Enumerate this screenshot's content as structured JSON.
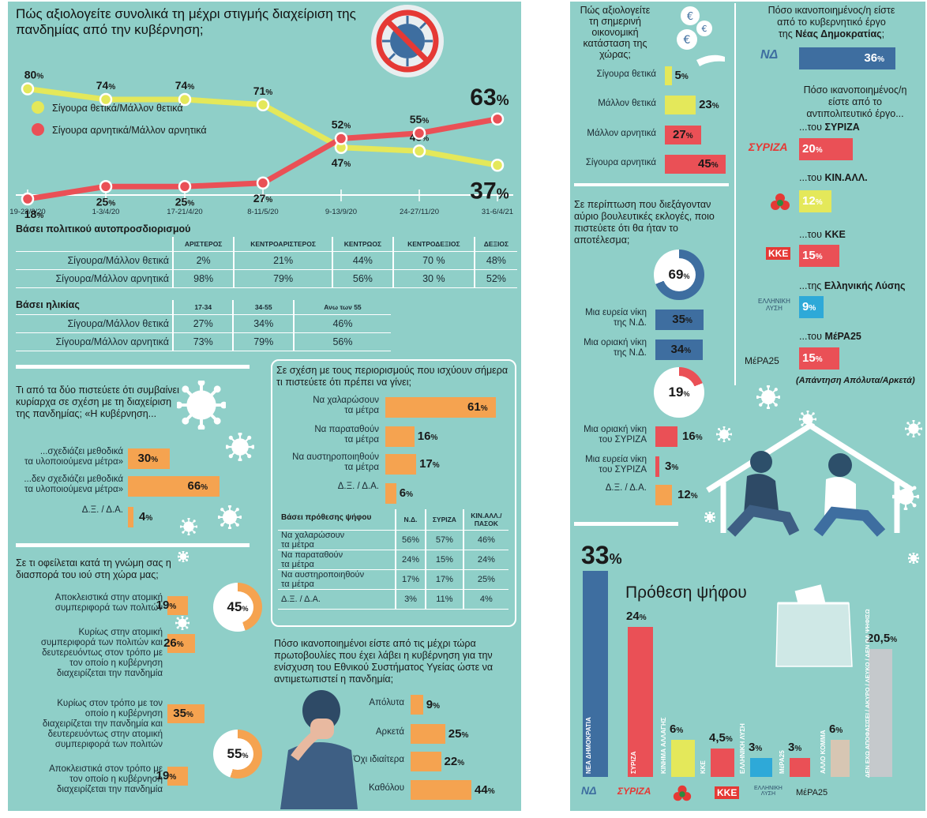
{
  "chart_data": [
    {
      "type": "line",
      "title": "Πώς αξιολογείτε συνολικά τη μέχρι στιγμής διαχείριση της πανδημίας από την κυβέρνηση;",
      "categories": [
        "19-22/3/20",
        "1-3/4/20",
        "17-21/4/20",
        "8-11/5/20",
        "9-13/9/20",
        "24-27/11/20",
        "31-6/4/21"
      ],
      "series": [
        {
          "name": "Σίγουρα θετικά/Μάλλον θετικά",
          "values": [
            80,
            74,
            74,
            71,
            47,
            45,
            37
          ],
          "color": "#e4e85a"
        },
        {
          "name": "Σίγουρα αρνητικά/Μάλλον αρνητικά",
          "values": [
            18,
            25,
            25,
            27,
            52,
            55,
            63
          ],
          "color": "#ea5056"
        }
      ],
      "ylim": [
        0,
        100
      ]
    },
    {
      "type": "table",
      "title": "Βάσει πολιτικού αυτοπροσδιορισμού",
      "columns": [
        "ΑΡΙΣΤΕΡΟΣ",
        "ΚΕΝΤΡΟΑΡΙΣΤΕΡΟΣ",
        "ΚΕΝΤΡΩΟΣ",
        "ΚΕΝΤΡΟΔΕΞΙΟΣ",
        "ΔΕΞΙΟΣ"
      ],
      "rows": [
        {
          "label": "Σίγουρα/Μάλλον θετικά",
          "values": [
            "2%",
            "21%",
            "44%",
            "70 %",
            "48%"
          ]
        },
        {
          "label": "Σίγουρα/Μάλλον αρνητικά",
          "values": [
            "98%",
            "79%",
            "56%",
            "30 %",
            "52%"
          ]
        }
      ]
    },
    {
      "type": "table",
      "title": "Βάσει ηλικίας",
      "columns": [
        "17-34",
        "34-55",
        "Ανω των 55"
      ],
      "rows": [
        {
          "label": "Σίγουρα/Μάλλον θετικά",
          "values": [
            "27%",
            "34%",
            "46%"
          ]
        },
        {
          "label": "Σίγουρα/Μάλλον αρνητικά",
          "values": [
            "73%",
            "79%",
            "56%"
          ]
        }
      ]
    },
    {
      "type": "bar",
      "title": "Τι από τα δύο πιστεύετε ότι συμβαίνει κυρίαρχα σε σχέση με τη διαχείριση της πανδημίας; «Η κυβέρνηση...",
      "categories": [
        "...σχεδιάζει μεθοδικά\nτα υλοποιούμενα μέτρα»",
        "...δεν σχεδιάζει μεθοδικά\nτα υλοποιούμενα μέτρα»",
        "Δ.Ξ. / Δ.Α."
      ],
      "values": [
        30,
        66,
        4
      ]
    },
    {
      "type": "bar",
      "title": "Σε τι οφείλεται κατά τη γνώμη σας η διασπορά του ιού στη χώρα μας;",
      "categories": [
        "Αποκλειστικά στην ατομική\nσυμπεριφορά των πολιτών",
        "Κυρίως στην ατομική\nσυμπεριφορά των πολιτών και\nδευτερευόντως στον τρόπο με\nτον οποίο η κυβέρνηση\nδιαχειρίζεται την πανδημία",
        "Κυρίως στον τρόπο με τον\nοποίο η κυβέρνηση\nδιαχειρίζεται την πανδημία και\nδευτερευόντως στην ατομική\nσυμπεριφορά των πολιτών",
        "Αποκλειστικά στον τρόπο με\nτον οποίο η κυβέρνηση\nδιαχειρίζεται την πανδημία"
      ],
      "values": [
        19,
        26,
        35,
        19
      ],
      "donuts": [
        45,
        55
      ]
    },
    {
      "type": "bar",
      "title": "Σε σχέση με τους περιορισμούς που ισχύουν σήμερα τι πιστεύετε ότι πρέπει να γίνει;",
      "categories": [
        "Να χαλαρώσουν\nτα μέτρα",
        "Να παραταθούν\nτα μέτρα",
        "Να αυστηροποιηθούν\nτα μέτρα",
        "Δ.Ξ. / Δ.Α."
      ],
      "values": [
        61,
        16,
        17,
        6
      ]
    },
    {
      "type": "table",
      "title": "Βάσει πρόθεσης ψήφου",
      "columns": [
        "Ν.Δ.",
        "ΣΥΡΙΖΑ",
        "ΚΙΝ.ΑΛΛ./\nΠΑΣΟΚ"
      ],
      "rows": [
        {
          "label": "Να χαλαρώσουν\nτα μέτρα",
          "values": [
            "56%",
            "57%",
            "46%"
          ]
        },
        {
          "label": "Να παραταθούν\nτα μέτρα",
          "values": [
            "24%",
            "15%",
            "24%"
          ]
        },
        {
          "label": "Να αυστηροποιηθούν\nτα μέτρα",
          "values": [
            "17%",
            "17%",
            "25%"
          ]
        },
        {
          "label": "Δ.Ξ. / Δ.Α.",
          "values": [
            "3%",
            "11%",
            "4%"
          ]
        }
      ]
    },
    {
      "type": "bar",
      "title": "Πόσο ικανοποιημένοι είστε από τις μέχρι τώρα πρωτοβουλίες που έχει λάβει η κυβέρνηση για την ενίσχυση του Εθνικού Συστήματος Υγείας ώστε να αντιμετωπιστεί η πανδημία;",
      "categories": [
        "Απόλυτα",
        "Αρκετά",
        "Όχι ιδιαίτερα",
        "Καθόλου"
      ],
      "values": [
        9,
        25,
        22,
        44
      ]
    },
    {
      "type": "bar",
      "title": "Πώς αξιολογείτε τη σημερινή οικονομική κατάσταση της χώρας;",
      "categories": [
        "Σίγουρα θετικά",
        "Μάλλον θετικά",
        "Μάλλον αρνητικά",
        "Σίγουρα αρνητικά"
      ],
      "values": [
        5,
        23,
        27,
        45
      ]
    },
    {
      "type": "bar",
      "title": "Σε περίπτωση που διεξάγονταν αύριο βουλευτικές εκλογές, ποιο πιστεύετε ότι θα ήταν το αποτέλεσμα;",
      "categories": [
        "Μια ευρεία νίκη\nτης Ν.Δ.",
        "Μια οριακή νίκη\nτης Ν.Δ.",
        "Μια οριακή νίκη\nτου ΣΥΡΙΖΑ",
        "Μια ευρεία νίκη\nτου ΣΥΡΙΖΑ",
        "Δ.Ξ. / Δ.Α."
      ],
      "values": [
        35,
        34,
        16,
        3,
        12
      ],
      "donuts": [
        69,
        19
      ]
    },
    {
      "type": "bar",
      "title": "Πόσο ικανοποιημένος/η είστε από το κυβερνητικό έργο της Νέας Δημοκρατίας; / από το αντιπολιτευτικό έργο...",
      "categories": [
        "Νέας Δημοκρατίας",
        "...του ΣΥΡΙΖΑ",
        "...του ΚΙΝ.ΑΛΛ.",
        "...του ΚΚΕ",
        "...της Ελληνικής Λύσης",
        "...του ΜέΡΑ25"
      ],
      "values": [
        36,
        20,
        12,
        15,
        9,
        15
      ],
      "note": "(Απάντηση Απόλυτα/Αρκετά)"
    },
    {
      "type": "bar",
      "title": "Πρόθεση ψήφου",
      "categories": [
        "ΝΕΑ ΔΗΜΟΚΡΑΤΙΑ",
        "ΣΥΡΙΖΑ",
        "ΚΙΝΗΜΑ ΑΛΛΑΓΗΣ",
        "ΚΚΕ",
        "ΕΛΛΗΝΙΚΗ ΛΥΣΗ",
        "ΜέΡΑ25",
        "ΑΛΛΟ ΚΟΜΜΑ",
        "ΔΕΝ ΕΧΩ ΑΠΟΦΑΣΙΣΕΙ / ΑΚΥΡΟ / ΛΕΥΚΟ / ΔΕΝ ΘΑ ΨΗΦΙΣΩ"
      ],
      "values": [
        33,
        24,
        6,
        4.5,
        3,
        3,
        6,
        20.5
      ],
      "value_labels": [
        "33",
        "24",
        "6",
        "4,5",
        "3",
        "3",
        "6",
        "20,5"
      ]
    }
  ],
  "labels": {
    "satisfied_nd": "Πόσο ικανοποιημένος/η είστε\nαπό το κυβερνητικό έργο\nτης ",
    "satisfied_nd_bold": "Νέας Δημοκρατίας",
    "satisfied_opp": "Πόσο ικανοποιημένος/η\nείστε από το\nαντιπολιτευτικό έργο...",
    "opp_syriza": "...του ",
    "opp_syriza_bold": "ΣΥΡΙΖΑ",
    "opp_kinall": "...του ",
    "opp_kinall_bold": "ΚΙΝ.ΑΛΛ.",
    "opp_kke": "...του ",
    "opp_kke_bold": "ΚΚΕ",
    "opp_el": "...της ",
    "opp_el_bold": "Ελληνικής Λύσης",
    "opp_mera": "...του ",
    "opp_mera_bold": "ΜέΡΑ25",
    "logos": {
      "nd": "ΝΔ",
      "nd_sub": "ΝΕΑ ΔΗΜΟΚΡΑΤΙΑ",
      "syriza": "ΣΥΡΙΖΑ",
      "kke": "ΚΚΕ",
      "el": "ΕΛΛΗΝΙΚΗ\nΛΥΣΗ",
      "mera": "ΜέΡΑ25"
    }
  }
}
